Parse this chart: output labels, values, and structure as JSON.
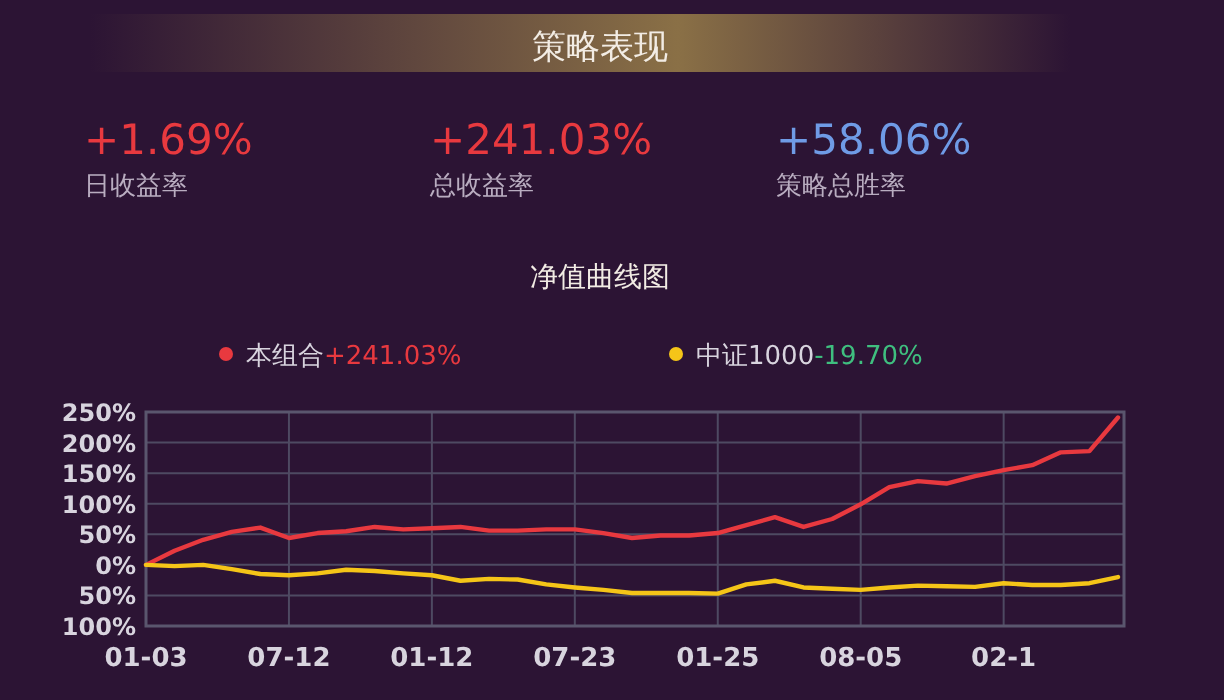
{
  "chart_data": [
    {
      "type": "other",
      "title": "策略表现",
      "annotations": [
        "+1.69%",
        "日收益率",
        "+241.03%",
        "总收益率",
        "+58.06%",
        "策略总胜率"
      ]
    },
    {
      "type": "line",
      "title": "净值曲线图",
      "legend": "top",
      "grid": true,
      "marker": "none",
      "line_style": "solid",
      "annotations": [
        "+241.03%",
        "-19.70%"
      ],
      "categories": [
        "01-03",
        null,
        null,
        null,
        null,
        "07-12",
        null,
        null,
        null,
        null,
        "01-12",
        null,
        null,
        null,
        null,
        "07-23",
        null,
        null,
        null,
        null,
        "01-25",
        null,
        null,
        null,
        null,
        "08-05",
        null,
        null,
        null,
        null,
        "02-1",
        null,
        null,
        null,
        null
      ],
      "ylim": [
        -100,
        250
      ],
      "yticks": [
        {
          "value": 250,
          "label": "250%"
        },
        {
          "value": 200,
          "label": "200%"
        },
        {
          "value": 150,
          "label": "150%"
        },
        {
          "value": 100,
          "label": "100%"
        },
        {
          "value": 50,
          "label": "50%"
        },
        {
          "value": 0,
          "label": "0%"
        },
        {
          "value": -50,
          "label": "50%"
        },
        {
          "value": -100,
          "label": "100%"
        }
      ],
      "series": [
        {
          "name": "本组合",
          "color": "#e8393f",
          "values": [
            0,
            23,
            41,
            54,
            61,
            44,
            52,
            55,
            62,
            58,
            60,
            62,
            56,
            56,
            58,
            58,
            52,
            44,
            48,
            48,
            52,
            65,
            78,
            62,
            75,
            99,
            127,
            137,
            133,
            145,
            155,
            163,
            184,
            186,
            241
          ]
        },
        {
          "name": "中证1000",
          "color": "#f5c518",
          "values": [
            0,
            -2,
            0,
            -7,
            -15,
            -17,
            -14,
            -8,
            -10,
            -14,
            -17,
            -26,
            -23,
            -24,
            -32,
            -37,
            -41,
            -46,
            -46,
            -46,
            -47,
            -32,
            -26,
            -37,
            -39,
            -41,
            -37,
            -34,
            -35,
            -36,
            -30,
            -33,
            -33,
            -30,
            -20
          ]
        }
      ]
    }
  ]
}
